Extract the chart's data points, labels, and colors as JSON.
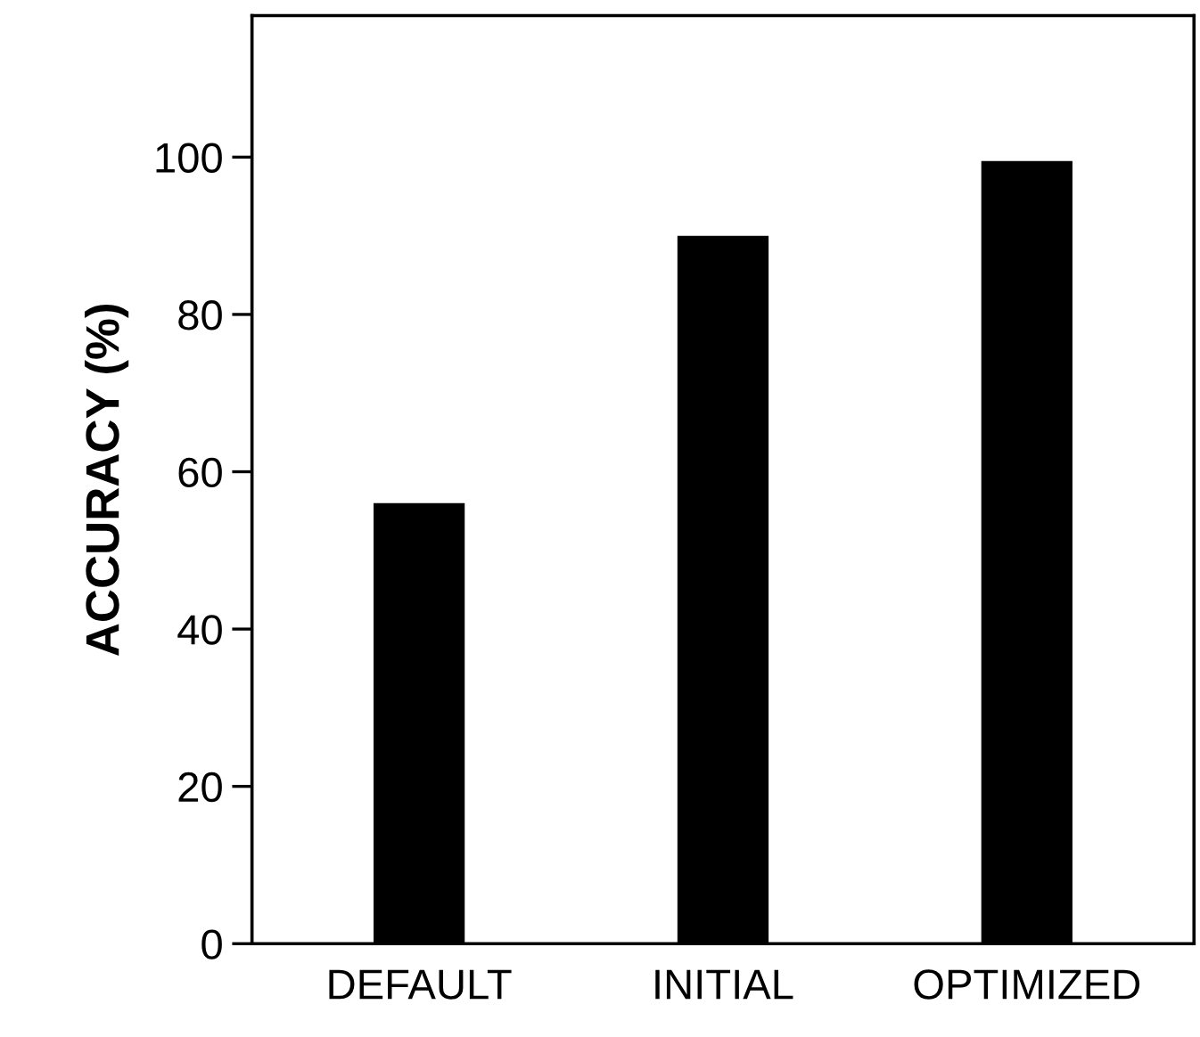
{
  "chart_data": {
    "type": "bar",
    "ylabel": "ACCURACY (%)",
    "categories": [
      "DEFAULT",
      "INITIAL",
      "OPTIMIZED"
    ],
    "values": [
      56,
      90,
      99.5
    ],
    "color": "#000000",
    "ylim": [
      0,
      118
    ],
    "yticks": [
      0,
      20,
      40,
      60,
      80,
      100
    ],
    "grid": false,
    "legend": false
  }
}
